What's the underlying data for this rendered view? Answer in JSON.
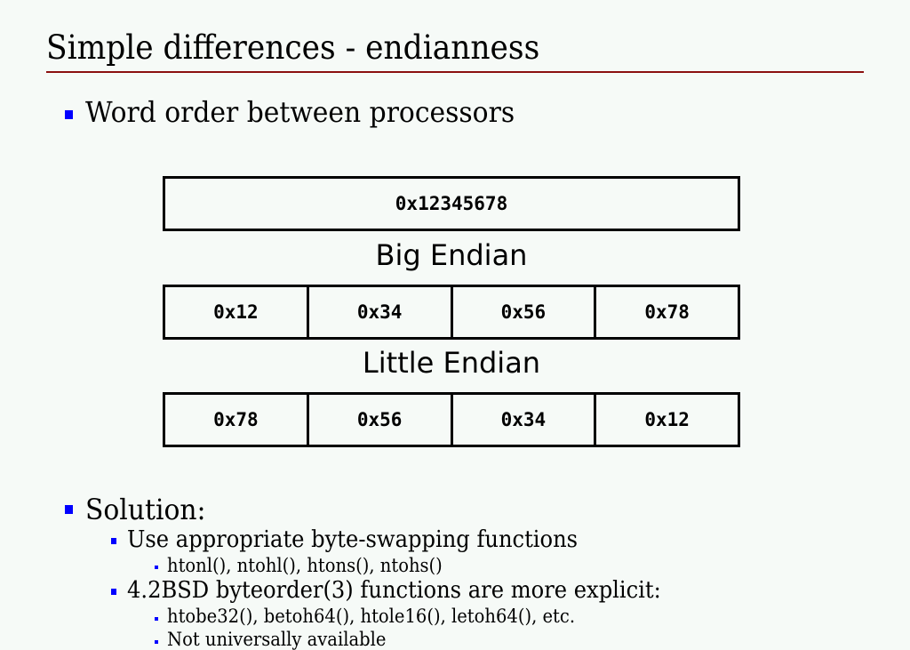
{
  "title": "Simple differences - endianness",
  "colors": {
    "rule": "#8b1010",
    "bullet": "#0000ff",
    "background": "#f6faf7"
  },
  "bullets": {
    "word_order": "Word order between processors",
    "solution": "Solution:",
    "use_swap": "Use appropriate byte-swapping functions",
    "swap_funcs": "htonl(), ntohl(), htons(), ntohs()",
    "bsd": "4.2BSD byteorder(3) functions are more explicit:",
    "bsd_funcs": "htobe32(), betoh64(), htole16(), letoh64(), etc.",
    "not_avail": "Not universally available"
  },
  "diagram": {
    "word": "0x12345678",
    "big_label": "Big Endian",
    "big": [
      "0x12",
      "0x34",
      "0x56",
      "0x78"
    ],
    "little_label": "Little Endian",
    "little": [
      "0x78",
      "0x56",
      "0x34",
      "0x12"
    ]
  }
}
